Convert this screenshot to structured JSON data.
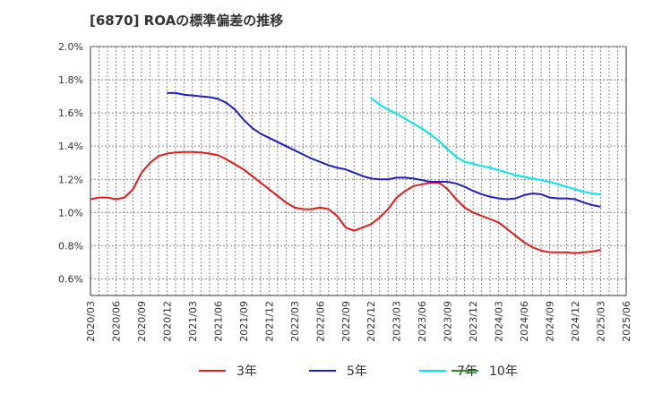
{
  "chart_data": {
    "type": "line",
    "title": "[6870]  ROAの標準偏差の推移",
    "xlabel": "",
    "ylabel": "",
    "ylim": [
      0.5,
      2.0
    ],
    "y_ticks": [
      "2.0%",
      "1.8%",
      "1.6%",
      "1.4%",
      "1.2%",
      "1.0%",
      "0.8%",
      "0.6%"
    ],
    "y_tick_values": [
      2.0,
      1.8,
      1.6,
      1.4,
      1.2,
      1.0,
      0.8,
      0.6
    ],
    "x_ticks": [
      "2020/03",
      "2020/06",
      "2020/09",
      "2020/12",
      "2021/03",
      "2021/06",
      "2021/09",
      "2021/12",
      "2022/03",
      "2022/06",
      "2022/09",
      "2022/12",
      "2023/03",
      "2023/06",
      "2023/09",
      "2023/12",
      "2024/03",
      "2024/06",
      "2024/09",
      "2024/12",
      "2025/03",
      "2025/06"
    ],
    "grid": true,
    "legend_position": "bottom",
    "series": [
      {
        "name": "3年",
        "color": "#e41a1c",
        "points": [
          [
            "2020/03",
            1.08
          ],
          [
            "2020/04",
            1.09
          ],
          [
            "2020/05",
            1.09
          ],
          [
            "2020/06",
            1.08
          ],
          [
            "2020/07",
            1.09
          ],
          [
            "2020/08",
            1.14
          ],
          [
            "2020/09",
            1.24
          ],
          [
            "2020/10",
            1.3
          ],
          [
            "2020/11",
            1.34
          ],
          [
            "2020/12",
            1.355
          ],
          [
            "2021/01",
            1.362
          ],
          [
            "2021/02",
            1.365
          ],
          [
            "2021/03",
            1.365
          ],
          [
            "2021/04",
            1.362
          ],
          [
            "2021/05",
            1.355
          ],
          [
            "2021/06",
            1.345
          ],
          [
            "2021/07",
            1.32
          ],
          [
            "2021/08",
            1.29
          ],
          [
            "2021/09",
            1.26
          ],
          [
            "2021/10",
            1.22
          ],
          [
            "2021/11",
            1.18
          ],
          [
            "2021/12",
            1.14
          ],
          [
            "2022/01",
            1.1
          ],
          [
            "2022/02",
            1.06
          ],
          [
            "2022/03",
            1.03
          ],
          [
            "2022/04",
            1.02
          ],
          [
            "2022/05",
            1.02
          ],
          [
            "2022/06",
            1.03
          ],
          [
            "2022/07",
            1.02
          ],
          [
            "2022/08",
            0.98
          ],
          [
            "2022/09",
            0.91
          ],
          [
            "2022/10",
            0.89
          ],
          [
            "2022/11",
            0.91
          ],
          [
            "2022/12",
            0.93
          ],
          [
            "2023/01",
            0.97
          ],
          [
            "2023/02",
            1.02
          ],
          [
            "2023/03",
            1.09
          ],
          [
            "2023/04",
            1.13
          ],
          [
            "2023/05",
            1.16
          ],
          [
            "2023/06",
            1.17
          ],
          [
            "2023/07",
            1.18
          ],
          [
            "2023/08",
            1.18
          ],
          [
            "2023/09",
            1.14
          ],
          [
            "2023/10",
            1.08
          ],
          [
            "2023/11",
            1.03
          ],
          [
            "2023/12",
            1.0
          ],
          [
            "2024/01",
            0.98
          ],
          [
            "2024/02",
            0.96
          ],
          [
            "2024/03",
            0.94
          ],
          [
            "2024/04",
            0.9
          ],
          [
            "2024/05",
            0.86
          ],
          [
            "2024/06",
            0.82
          ],
          [
            "2024/07",
            0.79
          ],
          [
            "2024/08",
            0.77
          ],
          [
            "2024/09",
            0.76
          ],
          [
            "2024/10",
            0.76
          ],
          [
            "2024/11",
            0.76
          ],
          [
            "2024/12",
            0.755
          ],
          [
            "2025/01",
            0.76
          ],
          [
            "2025/02",
            0.765
          ],
          [
            "2025/03",
            0.775
          ]
        ]
      },
      {
        "name": "5年",
        "color": "#1f1fbf",
        "points": [
          [
            "2020/12",
            1.72
          ],
          [
            "2021/01",
            1.72
          ],
          [
            "2021/02",
            1.71
          ],
          [
            "2021/03",
            1.705
          ],
          [
            "2021/04",
            1.7
          ],
          [
            "2021/05",
            1.695
          ],
          [
            "2021/06",
            1.685
          ],
          [
            "2021/07",
            1.66
          ],
          [
            "2021/08",
            1.62
          ],
          [
            "2021/09",
            1.56
          ],
          [
            "2021/10",
            1.51
          ],
          [
            "2021/11",
            1.475
          ],
          [
            "2021/12",
            1.45
          ],
          [
            "2022/01",
            1.425
          ],
          [
            "2022/02",
            1.4
          ],
          [
            "2022/03",
            1.375
          ],
          [
            "2022/04",
            1.35
          ],
          [
            "2022/05",
            1.325
          ],
          [
            "2022/06",
            1.305
          ],
          [
            "2022/07",
            1.285
          ],
          [
            "2022/08",
            1.27
          ],
          [
            "2022/09",
            1.26
          ],
          [
            "2022/10",
            1.24
          ],
          [
            "2022/11",
            1.22
          ],
          [
            "2022/12",
            1.205
          ],
          [
            "2023/01",
            1.2
          ],
          [
            "2023/02",
            1.2
          ],
          [
            "2023/03",
            1.21
          ],
          [
            "2023/04",
            1.21
          ],
          [
            "2023/05",
            1.205
          ],
          [
            "2023/06",
            1.195
          ],
          [
            "2023/07",
            1.185
          ],
          [
            "2023/08",
            1.185
          ],
          [
            "2023/09",
            1.185
          ],
          [
            "2023/10",
            1.175
          ],
          [
            "2023/11",
            1.155
          ],
          [
            "2023/12",
            1.13
          ],
          [
            "2024/01",
            1.11
          ],
          [
            "2024/02",
            1.095
          ],
          [
            "2024/03",
            1.085
          ],
          [
            "2024/04",
            1.08
          ],
          [
            "2024/05",
            1.085
          ],
          [
            "2024/06",
            1.105
          ],
          [
            "2024/07",
            1.115
          ],
          [
            "2024/08",
            1.11
          ],
          [
            "2024/09",
            1.09
          ],
          [
            "2024/10",
            1.085
          ],
          [
            "2024/11",
            1.085
          ],
          [
            "2024/12",
            1.08
          ],
          [
            "2025/01",
            1.06
          ],
          [
            "2025/02",
            1.045
          ],
          [
            "2025/03",
            1.035
          ]
        ]
      },
      {
        "name": "7年",
        "color": "#00e5ee",
        "points": [
          [
            "2022/12",
            1.69
          ],
          [
            "2023/01",
            1.65
          ],
          [
            "2023/02",
            1.62
          ],
          [
            "2023/03",
            1.595
          ],
          [
            "2023/04",
            1.565
          ],
          [
            "2023/05",
            1.535
          ],
          [
            "2023/06",
            1.505
          ],
          [
            "2023/07",
            1.47
          ],
          [
            "2023/08",
            1.43
          ],
          [
            "2023/09",
            1.38
          ],
          [
            "2023/10",
            1.335
          ],
          [
            "2023/11",
            1.305
          ],
          [
            "2023/12",
            1.295
          ],
          [
            "2024/01",
            1.28
          ],
          [
            "2024/02",
            1.27
          ],
          [
            "2024/03",
            1.255
          ],
          [
            "2024/04",
            1.24
          ],
          [
            "2024/05",
            1.225
          ],
          [
            "2024/06",
            1.215
          ],
          [
            "2024/07",
            1.205
          ],
          [
            "2024/08",
            1.195
          ],
          [
            "2024/09",
            1.185
          ],
          [
            "2024/10",
            1.17
          ],
          [
            "2024/11",
            1.155
          ],
          [
            "2024/12",
            1.14
          ],
          [
            "2025/01",
            1.125
          ],
          [
            "2025/02",
            1.115
          ],
          [
            "2025/03",
            1.11
          ]
        ]
      },
      {
        "name": "10年",
        "color": "#228b22",
        "points": []
      }
    ]
  }
}
